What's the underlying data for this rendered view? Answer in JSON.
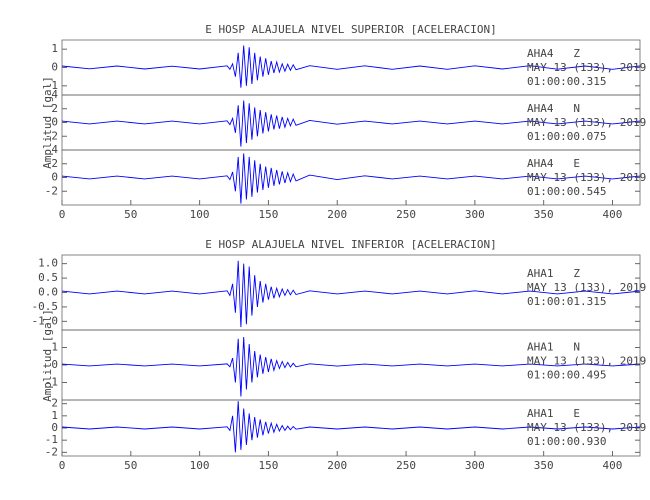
{
  "chart_data": [
    {
      "type": "line",
      "title": "E HOSP ALAJUELA NIVEL SUPERIOR [ACELERACION]",
      "ylabel": "Amplitud [gal]",
      "x": [
        0,
        20,
        40,
        60,
        80,
        100,
        120,
        122,
        124,
        126,
        128,
        130,
        132,
        134,
        136,
        138,
        140,
        142,
        144,
        146,
        148,
        150,
        152,
        154,
        156,
        158,
        160,
        162,
        164,
        166,
        168,
        170,
        180,
        200,
        220,
        240,
        260,
        280,
        300,
        320,
        340,
        360,
        380,
        400,
        420
      ],
      "xlim": [
        0,
        420
      ],
      "xticks": [
        0,
        50,
        100,
        150,
        200,
        250,
        300,
        350,
        400
      ],
      "series": [
        {
          "name": "AHA4   Z",
          "date": "MAY 13 (133), 2019",
          "time": "01:00:00.315",
          "color": "#0000ff",
          "ylim": [
            -1.5,
            1.5
          ],
          "yticks": [
            -1,
            0,
            1
          ],
          "values": [
            0.08,
            -0.07,
            0.08,
            -0.08,
            0.07,
            -0.08,
            0.09,
            -0.1,
            0.2,
            -0.5,
            0.8,
            -1.1,
            1.2,
            -1.0,
            1.1,
            -0.9,
            0.8,
            -0.7,
            0.6,
            -0.5,
            0.5,
            -0.4,
            0.35,
            -0.3,
            0.3,
            -0.25,
            0.2,
            -0.2,
            0.18,
            -0.15,
            0.15,
            -0.12,
            0.1,
            -0.1,
            0.09,
            -0.1,
            0.08,
            -0.1,
            0.09,
            -0.08,
            0.1,
            -0.09,
            0.08,
            -0.1,
            0.08
          ]
        },
        {
          "name": "AHA4   N",
          "date": "MAY 13 (133), 2019",
          "time": "01:00:00.075",
          "color": "#0000ff",
          "ylim": [
            -4,
            4
          ],
          "yticks": [
            -2,
            0,
            2,
            4
          ],
          "values": [
            0.2,
            -0.2,
            0.2,
            -0.2,
            0.2,
            -0.2,
            0.25,
            -0.3,
            0.6,
            -1.5,
            2.5,
            -3.5,
            3.2,
            -3.0,
            2.8,
            -2.5,
            2.2,
            -2.0,
            1.8,
            -1.6,
            1.5,
            -1.3,
            1.2,
            -1.0,
            1.0,
            -0.9,
            0.8,
            -0.7,
            0.6,
            -0.5,
            0.5,
            -0.4,
            0.3,
            -0.25,
            0.2,
            -0.2,
            0.2,
            -0.2,
            0.2,
            -0.2,
            0.2,
            -0.2,
            0.2,
            -0.2,
            0.2
          ]
        },
        {
          "name": "AHA4   E",
          "date": "MAY 13 (133), 2019",
          "time": "01:00:00.545",
          "color": "#0000ff",
          "ylim": [
            -4,
            4
          ],
          "yticks": [
            -2,
            0,
            2,
            4
          ],
          "values": [
            0.2,
            -0.2,
            0.2,
            -0.2,
            0.2,
            -0.2,
            0.25,
            -0.3,
            0.8,
            -2.0,
            3.0,
            -3.8,
            3.5,
            -3.2,
            3.0,
            -2.8,
            2.5,
            -2.2,
            2.0,
            -1.8,
            1.6,
            -1.5,
            1.4,
            -1.2,
            1.1,
            -1.0,
            0.9,
            -0.8,
            0.7,
            -0.6,
            0.5,
            -0.5,
            0.35,
            -0.3,
            0.25,
            -0.2,
            0.2,
            -0.2,
            0.2,
            -0.2,
            0.2,
            -0.2,
            0.2,
            -0.2,
            0.2
          ]
        }
      ]
    },
    {
      "type": "line",
      "title": "E HOSP ALAJUELA NIVEL INFERIOR [ACELERACION]",
      "ylabel": "Amplitud [gal]",
      "x": [
        0,
        20,
        40,
        60,
        80,
        100,
        120,
        122,
        124,
        126,
        128,
        130,
        132,
        134,
        136,
        138,
        140,
        142,
        144,
        146,
        148,
        150,
        152,
        154,
        156,
        158,
        160,
        162,
        164,
        166,
        168,
        170,
        180,
        200,
        220,
        240,
        260,
        280,
        300,
        320,
        340,
        360,
        380,
        400,
        420
      ],
      "xlim": [
        0,
        420
      ],
      "xticks": [
        0,
        50,
        100,
        150,
        200,
        250,
        300,
        350,
        400
      ],
      "series": [
        {
          "name": "AHA1   Z",
          "date": "MAY 13 (133), 2019",
          "time": "01:00:01.315",
          "color": "#0000ff",
          "ylim": [
            -1.3,
            1.3
          ],
          "yticks": [
            {
              "value": -1,
              "label": "-1.0"
            },
            -0.5,
            {
              "value": 0,
              "label": "0.0"
            },
            0.5,
            {
              "value": 1,
              "label": "1.0"
            }
          ],
          "values": [
            0.05,
            -0.05,
            0.05,
            -0.05,
            0.05,
            -0.05,
            0.06,
            -0.1,
            0.3,
            -0.7,
            1.1,
            -1.2,
            1.0,
            -1.1,
            0.9,
            -0.8,
            0.6,
            -0.5,
            0.4,
            -0.35,
            0.3,
            -0.25,
            0.2,
            -0.2,
            0.15,
            -0.15,
            0.12,
            -0.1,
            0.1,
            -0.08,
            0.08,
            -0.07,
            0.06,
            -0.05,
            0.05,
            -0.05,
            0.05,
            -0.05,
            0.06,
            -0.05,
            0.05,
            -0.05,
            0.05,
            -0.05,
            0.05
          ]
        },
        {
          "name": "AHA1   N",
          "date": "MAY 13 (133), 2019",
          "time": "01:00:00.495",
          "color": "#0000ff",
          "ylim": [
            -2,
            2
          ],
          "yticks": [
            -1,
            0,
            1
          ],
          "values": [
            0.05,
            -0.05,
            0.05,
            -0.05,
            0.05,
            -0.05,
            0.06,
            -0.1,
            0.4,
            -1.0,
            1.5,
            -1.8,
            1.6,
            -1.4,
            1.2,
            -1.0,
            0.8,
            -0.7,
            0.6,
            -0.5,
            0.45,
            -0.4,
            0.35,
            -0.3,
            0.25,
            -0.2,
            0.2,
            -0.15,
            0.15,
            -0.12,
            0.1,
            -0.1,
            0.07,
            -0.06,
            0.05,
            -0.05,
            0.05,
            -0.05,
            0.05,
            -0.05,
            0.05,
            -0.05,
            0.05,
            -0.05,
            0.05
          ]
        },
        {
          "name": "AHA1   E",
          "date": "MAY 13 (133), 2019",
          "time": "01:00:00.930",
          "color": "#0000ff",
          "ylim": [
            -2.3,
            2.3
          ],
          "yticks": [
            -2,
            -1,
            0,
            1,
            2
          ],
          "values": [
            0.08,
            -0.08,
            0.08,
            -0.08,
            0.08,
            -0.08,
            0.1,
            -0.2,
            1.0,
            -2.0,
            2.2,
            -1.8,
            1.6,
            -1.4,
            1.2,
            -1.0,
            0.9,
            -0.8,
            0.7,
            -0.6,
            0.5,
            -0.45,
            0.4,
            -0.35,
            0.3,
            -0.25,
            0.2,
            -0.2,
            0.15,
            -0.15,
            0.12,
            -0.1,
            0.08,
            -0.08,
            0.08,
            -0.08,
            0.08,
            -0.08,
            0.08,
            -0.08,
            0.08,
            -0.08,
            0.08,
            -0.08,
            0.08
          ]
        }
      ]
    }
  ]
}
